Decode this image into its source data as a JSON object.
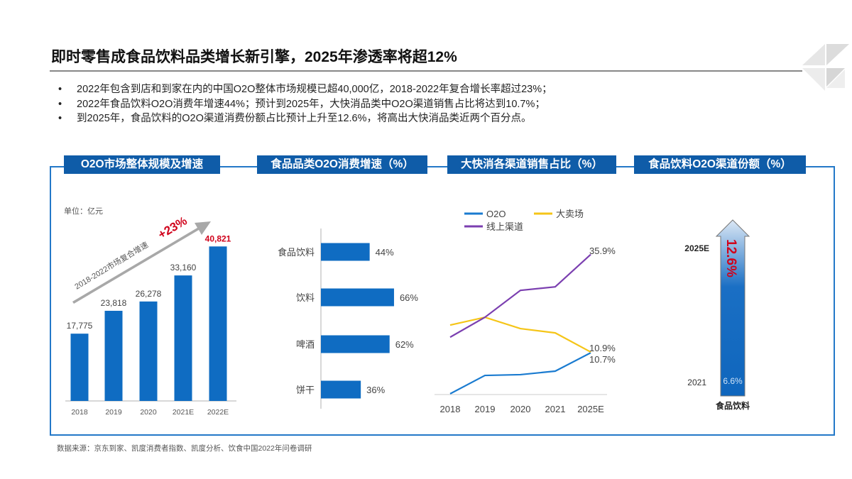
{
  "title": "即时零售成食品饮料品类增长新引擎，2025年渗透率将超12%",
  "bullets": [
    "2022年包含到店和到家在内的中国O2O整体市场规模已超40,000亿，2018-2022年复合增长率超过23%；",
    "2022年食品饮料O2O消费年增速44%；预计到2025年，大快消品类中O2O渠道销售占比将达到10.7%；",
    "到2025年，食品饮料的O2O渠道消费份额占比预计上升至12.6%，将高出大快消品类近两个百分点。"
  ],
  "source": "数据来源：京东到家、凯度消费者指数、凯度分析、饮食中国2022年问卷调研",
  "colors": {
    "bar": "#0f6cc2",
    "header": "#0f5ca8",
    "highlight": "#d0021b",
    "o2o": "#1a7bd0",
    "hypermarket": "#f5c518",
    "online": "#7b3fb0"
  },
  "chart_data": [
    {
      "type": "bar",
      "header": "O2O市场整体规模及增速",
      "unit": "单位：亿元",
      "categories": [
        "2018",
        "2019",
        "2020",
        "2021E",
        "2022E"
      ],
      "values": [
        17775,
        23818,
        26278,
        33160,
        40821
      ],
      "value_labels": [
        "17,775",
        "23,818",
        "26,278",
        "33,160",
        "40,821"
      ],
      "annotation": "2018-2022市场复合增速",
      "annotation_value": "+23%",
      "ylim": [
        0,
        42000
      ]
    },
    {
      "type": "bar",
      "orientation": "horizontal",
      "header": "食品品类O2O消费增速（%）",
      "categories": [
        "食品饮料",
        "饮料",
        "啤酒",
        "饼干"
      ],
      "values": [
        44,
        66,
        62,
        36
      ],
      "value_labels": [
        "44%",
        "66%",
        "62%",
        "36%"
      ],
      "xlim": [
        0,
        100
      ]
    },
    {
      "type": "line",
      "header": "大快消各渠道销售占比（%）",
      "categories": [
        "2018",
        "2019",
        "2020",
        "2021",
        "2025E"
      ],
      "legend": "top",
      "ylim": [
        0,
        40
      ],
      "series": [
        {
          "name": "O2O",
          "values": [
            0.2,
            4.9,
            5.1,
            6.0,
            10.7
          ],
          "end_label": "10.7%"
        },
        {
          "name": "大卖场",
          "values": [
            17.8,
            19.8,
            16.9,
            15.8,
            10.9
          ],
          "end_label": "10.9%"
        },
        {
          "name": "线上渠道",
          "values": [
            14.7,
            19.8,
            26.7,
            27.6,
            35.9
          ],
          "end_label": "35.9%"
        }
      ]
    },
    {
      "type": "bar",
      "header": "食品饮料O2O渠道份额（%）",
      "category": "食品饮料",
      "points": [
        {
          "label": "2021",
          "value": 6.6,
          "value_label": "6.6%"
        },
        {
          "label": "2025E",
          "value": 12.6,
          "value_label": "12.6%"
        }
      ]
    }
  ]
}
